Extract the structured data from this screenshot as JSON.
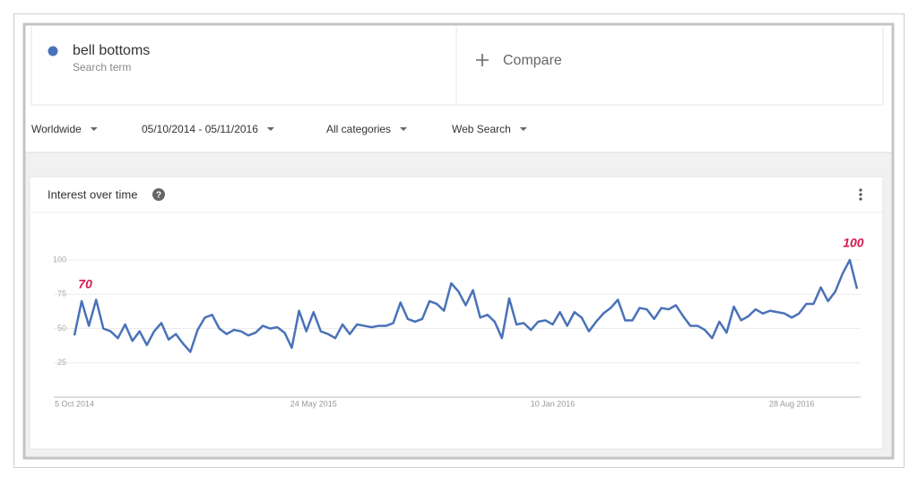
{
  "filters": [
    "Worldwide",
    "05/10/2014 - 05/11/2016",
    "All categories",
    "Web Search"
  ],
  "search_term_caption": "Search term",
  "compare": "Compare",
  "chart_data": {
    "type": "line",
    "title": "Interest over time",
    "categories": [
      "5 Oct 2014",
      null,
      null,
      null,
      null,
      null,
      null,
      null,
      null,
      null,
      null,
      null,
      null,
      null,
      null,
      null,
      null,
      null,
      null,
      null,
      null,
      null,
      null,
      null,
      null,
      null,
      null,
      null,
      null,
      null,
      null,
      null,
      null,
      "24 May 2015",
      null,
      null,
      null,
      null,
      null,
      null,
      null,
      null,
      null,
      null,
      null,
      null,
      null,
      null,
      null,
      null,
      null,
      null,
      null,
      null,
      null,
      null,
      null,
      null,
      null,
      null,
      null,
      null,
      null,
      null,
      null,
      null,
      "10 Jan 2016",
      null,
      null,
      null,
      null,
      null,
      null,
      null,
      null,
      null,
      null,
      null,
      null,
      null,
      null,
      null,
      null,
      null,
      null,
      null,
      null,
      null,
      null,
      null,
      null,
      null,
      null,
      null,
      null,
      null,
      null,
      null,
      null,
      "28 Aug 2016",
      null,
      null,
      null,
      null,
      null,
      null,
      null,
      null,
      null
    ],
    "series": [
      {
        "name": "bell bottoms",
        "color": "#4a72b8",
        "values": [
          45,
          70,
          52,
          71,
          50,
          48,
          43,
          53,
          41,
          48,
          38,
          48,
          54,
          42,
          46,
          39,
          33,
          49,
          58,
          60,
          50,
          46,
          49,
          48,
          45,
          47,
          52,
          50,
          51,
          47,
          36,
          63,
          48,
          62,
          48,
          46,
          43,
          53,
          46,
          53,
          52,
          51,
          52,
          52,
          54,
          69,
          57,
          55,
          57,
          70,
          68,
          63,
          83,
          77,
          67,
          78,
          58,
          60,
          55,
          43,
          72,
          53,
          54,
          49,
          55,
          56,
          53,
          62,
          52,
          62,
          58,
          48,
          55,
          61,
          65,
          71,
          56,
          56,
          65,
          64,
          57,
          65,
          64,
          67,
          59,
          52,
          52,
          49,
          43,
          55,
          47,
          66,
          56,
          59,
          64,
          61,
          63,
          62,
          61,
          58,
          61,
          68,
          68,
          80,
          70,
          77,
          90,
          100,
          79
        ],
        "value_labels": [
          null,
          "70",
          null,
          null,
          null,
          null,
          null,
          null,
          null,
          null,
          null,
          null,
          null,
          null,
          null,
          null,
          null,
          null,
          null,
          null,
          null,
          null,
          null,
          null,
          null,
          null,
          null,
          null,
          null,
          null,
          null,
          null,
          null,
          null,
          null,
          null,
          null,
          null,
          null,
          null,
          null,
          null,
          null,
          null,
          null,
          null,
          null,
          null,
          null,
          null,
          null,
          null,
          null,
          null,
          null,
          null,
          null,
          null,
          null,
          null,
          null,
          null,
          null,
          null,
          null,
          null,
          null,
          null,
          null,
          null,
          null,
          null,
          null,
          null,
          null,
          null,
          null,
          null,
          null,
          null,
          null,
          null,
          null,
          null,
          null,
          null,
          null,
          null,
          null,
          null,
          null,
          null,
          null,
          null,
          null,
          null,
          null,
          null,
          null,
          null,
          null,
          null,
          null,
          null,
          null,
          null,
          null,
          "100",
          null
        ],
        "label_color": "#d81b4f"
      }
    ],
    "ylim": [
      0,
      100
    ],
    "yticks": [
      25,
      50,
      75,
      100
    ],
    "grid": true
  }
}
